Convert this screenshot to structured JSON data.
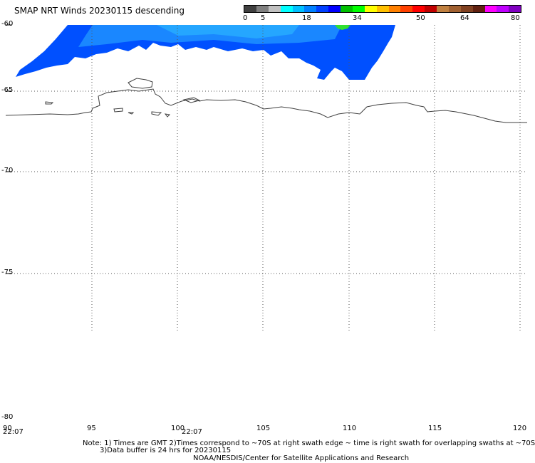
{
  "title": "SMAP NRT Winds  20230115  descending",
  "colorbar": {
    "ticks": [
      "0",
      "5",
      "18",
      "34",
      "50",
      "64",
      "80"
    ],
    "colors": [
      "#404040",
      "#808080",
      "#c0c0c0",
      "#00ffff",
      "#00c0ff",
      "#0080ff",
      "#0040ff",
      "#0000ff",
      "#00c000",
      "#00ff00",
      "#ffff00",
      "#ffc000",
      "#ff8000",
      "#ff4000",
      "#ff0000",
      "#c00000",
      "#c08040",
      "#a06030",
      "#804020",
      "#602010",
      "#ff00ff",
      "#c000ff",
      "#8000c0"
    ]
  },
  "map": {
    "lat_labels": [
      "-60",
      "-65",
      "-70",
      "-75",
      "-80"
    ],
    "lon_labels": [
      "90",
      "95",
      "100",
      "105",
      "110",
      "115",
      "120"
    ],
    "time_labels": [
      "22:07",
      "22:07"
    ],
    "wind_color": "#0050ff",
    "coast_color": "#404040"
  },
  "notes": {
    "line1": "Note: 1) Times are GMT 2)Times correspond to ~70S at right swath edge ~ time is right swath for overlapping swaths at ~70S",
    "line2": "3)Data buffer is 24 hrs for 20230115",
    "line3": "NOAA/NESDIS/Center for Satellite Applications and Research"
  }
}
